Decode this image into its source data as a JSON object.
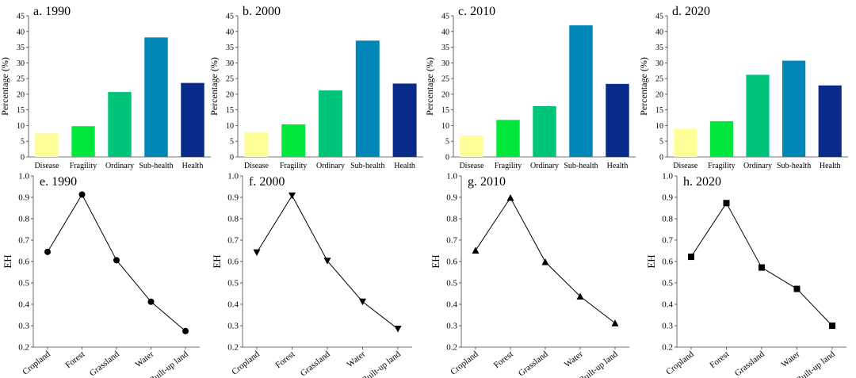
{
  "chart_data": [
    {
      "id": "a",
      "type": "bar",
      "title": "a. 1990",
      "categories": [
        "Disease",
        "Fragility",
        "Ordinary",
        "Sub-health",
        "Health"
      ],
      "values": [
        7.5,
        9.8,
        20.7,
        38.1,
        23.6
      ],
      "ylabel": "Percentage (%)",
      "xlabel": "",
      "ylim": [
        0,
        45
      ],
      "yticks": [
        0,
        5,
        10,
        15,
        20,
        25,
        30,
        35,
        40,
        45
      ],
      "colors": [
        "#ffff99",
        "#00e63a",
        "#00c47a",
        "#0087b8",
        "#0a2a8a"
      ]
    },
    {
      "id": "b",
      "type": "bar",
      "title": "b. 2000",
      "categories": [
        "Disease",
        "Fragility",
        "Ordinary",
        "Sub-health",
        "Health"
      ],
      "values": [
        7.9,
        10.4,
        21.2,
        37.1,
        23.4
      ],
      "ylabel": "Percentage (%)",
      "xlabel": "",
      "ylim": [
        0,
        45
      ],
      "yticks": [
        0,
        5,
        10,
        15,
        20,
        25,
        30,
        35,
        40,
        45
      ],
      "colors": [
        "#ffff99",
        "#00e63a",
        "#00c47a",
        "#0087b8",
        "#0a2a8a"
      ]
    },
    {
      "id": "c",
      "type": "bar",
      "title": "c. 2010",
      "categories": [
        "Disease",
        "Fragility",
        "Ordinary",
        "Sub-health",
        "Health"
      ],
      "values": [
        6.8,
        11.8,
        16.2,
        42.0,
        23.3
      ],
      "ylabel": "Percentage (%)",
      "xlabel": "",
      "ylim": [
        0,
        45
      ],
      "yticks": [
        0,
        5,
        10,
        15,
        20,
        25,
        30,
        35,
        40,
        45
      ],
      "colors": [
        "#ffff99",
        "#00e63a",
        "#00c47a",
        "#0087b8",
        "#0a2a8a"
      ]
    },
    {
      "id": "d",
      "type": "bar",
      "title": "d. 2020",
      "categories": [
        "Disease",
        "Fragility",
        "Ordinary",
        "Sub-health",
        "Health"
      ],
      "values": [
        9.0,
        11.4,
        26.2,
        30.7,
        22.8
      ],
      "ylabel": "Percentage (%)",
      "xlabel": "",
      "ylim": [
        0,
        45
      ],
      "yticks": [
        0,
        5,
        10,
        15,
        20,
        25,
        30,
        35,
        40,
        45
      ],
      "colors": [
        "#ffff99",
        "#00e63a",
        "#00c47a",
        "#0087b8",
        "#0a2a8a"
      ]
    },
    {
      "id": "e",
      "type": "line",
      "title": "e. 1990",
      "marker": "circle",
      "categories": [
        "Cropland",
        "Forest",
        "Grassland",
        "Water",
        "Built-up land"
      ],
      "values": [
        0.645,
        0.913,
        0.606,
        0.412,
        0.275
      ],
      "ylabel": "EH",
      "xlabel": "",
      "ylim": [
        0.2,
        1.0
      ],
      "yticks": [
        0.2,
        0.3,
        0.4,
        0.5,
        0.6,
        0.7,
        0.8,
        0.9,
        1.0
      ]
    },
    {
      "id": "f",
      "type": "line",
      "title": "f. 2000",
      "marker": "triangle-down",
      "categories": [
        "Cropland",
        "Forest",
        "Grassland",
        "Water",
        "Built-up land"
      ],
      "values": [
        0.642,
        0.908,
        0.603,
        0.412,
        0.285
      ],
      "ylabel": "EH",
      "xlabel": "",
      "ylim": [
        0.2,
        1.0
      ],
      "yticks": [
        0.2,
        0.3,
        0.4,
        0.5,
        0.6,
        0.7,
        0.8,
        0.9,
        1.0
      ]
    },
    {
      "id": "g",
      "type": "line",
      "title": "g. 2010",
      "marker": "triangle-up",
      "categories": [
        "Cropland",
        "Forest",
        "Grassland",
        "Water",
        "Built-up land"
      ],
      "values": [
        0.652,
        0.898,
        0.598,
        0.437,
        0.312
      ],
      "ylabel": "EH",
      "xlabel": "",
      "ylim": [
        0.2,
        1.0
      ],
      "yticks": [
        0.2,
        0.3,
        0.4,
        0.5,
        0.6,
        0.7,
        0.8,
        0.9,
        1.0
      ]
    },
    {
      "id": "h",
      "type": "line",
      "title": "h. 2020",
      "marker": "square",
      "categories": [
        "Cropland",
        "Forest",
        "Grassland",
        "Water",
        "Built-up land"
      ],
      "values": [
        0.622,
        0.873,
        0.572,
        0.472,
        0.3
      ],
      "ylabel": "EH",
      "xlabel": "",
      "ylim": [
        0.2,
        1.0
      ],
      "yticks": [
        0.2,
        0.3,
        0.4,
        0.5,
        0.6,
        0.7,
        0.8,
        0.9,
        1.0
      ]
    }
  ]
}
